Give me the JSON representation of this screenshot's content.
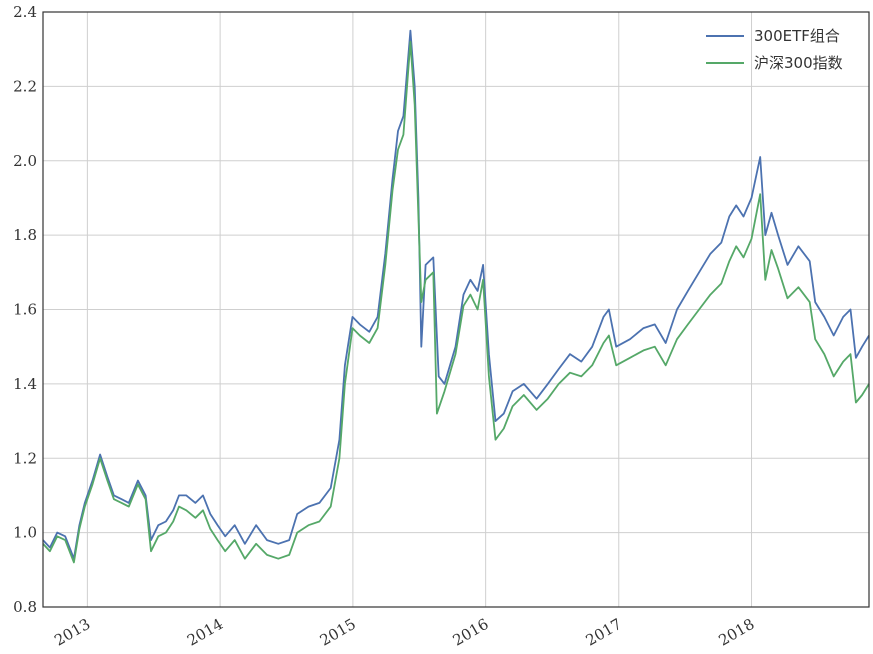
{
  "chart_data": {
    "type": "line",
    "title": "",
    "xlabel": "",
    "ylabel": "",
    "ylim": [
      0.8,
      2.4
    ],
    "xlim": [
      "2012-09-01",
      "2018-11-20"
    ],
    "grid": true,
    "legend_position": "top-right",
    "y_ticks": [
      "0.8",
      "1.0",
      "1.2",
      "1.4",
      "1.6",
      "1.8",
      "2.0",
      "2.2",
      "2.4"
    ],
    "x_ticks": [
      {
        "date": "2013-01-01",
        "label": "2013"
      },
      {
        "date": "2014-01-01",
        "label": "2014"
      },
      {
        "date": "2015-01-01",
        "label": "2015"
      },
      {
        "date": "2016-01-01",
        "label": "2016"
      },
      {
        "date": "2017-01-01",
        "label": "2017"
      },
      {
        "date": "2018-01-01",
        "label": "2018"
      }
    ],
    "series": [
      {
        "name": "300ETF组合",
        "color": "#4c72b0",
        "points": [
          [
            "2012-09-01",
            0.98
          ],
          [
            "2012-09-20",
            0.96
          ],
          [
            "2012-10-10",
            1.0
          ],
          [
            "2012-11-01",
            0.99
          ],
          [
            "2012-11-25",
            0.93
          ],
          [
            "2012-12-10",
            1.02
          ],
          [
            "2012-12-25",
            1.08
          ],
          [
            "2013-01-15",
            1.14
          ],
          [
            "2013-02-05",
            1.21
          ],
          [
            "2013-02-25",
            1.15
          ],
          [
            "2013-03-15",
            1.1
          ],
          [
            "2013-04-05",
            1.09
          ],
          [
            "2013-04-25",
            1.08
          ],
          [
            "2013-05-20",
            1.14
          ],
          [
            "2013-06-10",
            1.1
          ],
          [
            "2013-06-25",
            0.98
          ],
          [
            "2013-07-15",
            1.02
          ],
          [
            "2013-08-05",
            1.03
          ],
          [
            "2013-08-25",
            1.06
          ],
          [
            "2013-09-10",
            1.1
          ],
          [
            "2013-09-30",
            1.1
          ],
          [
            "2013-10-25",
            1.08
          ],
          [
            "2013-11-15",
            1.1
          ],
          [
            "2013-12-05",
            1.05
          ],
          [
            "2013-12-25",
            1.02
          ],
          [
            "2014-01-15",
            0.99
          ],
          [
            "2014-02-10",
            1.02
          ],
          [
            "2014-03-10",
            0.97
          ],
          [
            "2014-04-10",
            1.02
          ],
          [
            "2014-05-10",
            0.98
          ],
          [
            "2014-06-10",
            0.97
          ],
          [
            "2014-07-10",
            0.98
          ],
          [
            "2014-08-01",
            1.05
          ],
          [
            "2014-09-01",
            1.07
          ],
          [
            "2014-10-01",
            1.08
          ],
          [
            "2014-11-01",
            1.12
          ],
          [
            "2014-11-25",
            1.25
          ],
          [
            "2014-12-10",
            1.45
          ],
          [
            "2014-12-31",
            1.58
          ],
          [
            "2015-01-20",
            1.56
          ],
          [
            "2015-02-15",
            1.54
          ],
          [
            "2015-03-10",
            1.58
          ],
          [
            "2015-03-31",
            1.75
          ],
          [
            "2015-04-20",
            1.95
          ],
          [
            "2015-05-05",
            2.08
          ],
          [
            "2015-05-20",
            2.12
          ],
          [
            "2015-06-08",
            2.35
          ],
          [
            "2015-06-20",
            2.2
          ],
          [
            "2015-06-30",
            1.9
          ],
          [
            "2015-07-08",
            1.5
          ],
          [
            "2015-07-20",
            1.72
          ],
          [
            "2015-08-10",
            1.74
          ],
          [
            "2015-08-25",
            1.42
          ],
          [
            "2015-09-10",
            1.4
          ],
          [
            "2015-10-10",
            1.5
          ],
          [
            "2015-11-01",
            1.64
          ],
          [
            "2015-11-20",
            1.68
          ],
          [
            "2015-12-10",
            1.65
          ],
          [
            "2015-12-25",
            1.72
          ],
          [
            "2016-01-10",
            1.48
          ],
          [
            "2016-01-28",
            1.3
          ],
          [
            "2016-02-20",
            1.32
          ],
          [
            "2016-03-15",
            1.38
          ],
          [
            "2016-04-15",
            1.4
          ],
          [
            "2016-05-20",
            1.36
          ],
          [
            "2016-06-20",
            1.4
          ],
          [
            "2016-07-20",
            1.44
          ],
          [
            "2016-08-20",
            1.48
          ],
          [
            "2016-09-20",
            1.46
          ],
          [
            "2016-10-20",
            1.5
          ],
          [
            "2016-11-20",
            1.58
          ],
          [
            "2016-12-05",
            1.6
          ],
          [
            "2016-12-25",
            1.5
          ],
          [
            "2017-02-01",
            1.52
          ],
          [
            "2017-03-10",
            1.55
          ],
          [
            "2017-04-10",
            1.56
          ],
          [
            "2017-05-10",
            1.51
          ],
          [
            "2017-06-10",
            1.6
          ],
          [
            "2017-07-10",
            1.65
          ],
          [
            "2017-08-10",
            1.7
          ],
          [
            "2017-09-10",
            1.75
          ],
          [
            "2017-10-10",
            1.78
          ],
          [
            "2017-11-01",
            1.85
          ],
          [
            "2017-11-20",
            1.88
          ],
          [
            "2017-12-10",
            1.85
          ],
          [
            "2018-01-01",
            1.9
          ],
          [
            "2018-01-25",
            2.01
          ],
          [
            "2018-02-08",
            1.8
          ],
          [
            "2018-02-25",
            1.86
          ],
          [
            "2018-03-15",
            1.8
          ],
          [
            "2018-04-10",
            1.72
          ],
          [
            "2018-05-10",
            1.77
          ],
          [
            "2018-06-10",
            1.73
          ],
          [
            "2018-06-25",
            1.62
          ],
          [
            "2018-07-20",
            1.58
          ],
          [
            "2018-08-15",
            1.53
          ],
          [
            "2018-09-10",
            1.58
          ],
          [
            "2018-09-30",
            1.6
          ],
          [
            "2018-10-15",
            1.47
          ],
          [
            "2018-11-01",
            1.5
          ],
          [
            "2018-11-20",
            1.53
          ]
        ]
      },
      {
        "name": "沪深300指数",
        "color": "#55a868",
        "points": [
          [
            "2012-09-01",
            0.97
          ],
          [
            "2012-09-20",
            0.95
          ],
          [
            "2012-10-10",
            0.99
          ],
          [
            "2012-11-01",
            0.98
          ],
          [
            "2012-11-25",
            0.92
          ],
          [
            "2012-12-10",
            1.01
          ],
          [
            "2012-12-25",
            1.07
          ],
          [
            "2013-01-15",
            1.13
          ],
          [
            "2013-02-05",
            1.2
          ],
          [
            "2013-02-25",
            1.14
          ],
          [
            "2013-03-15",
            1.09
          ],
          [
            "2013-04-05",
            1.08
          ],
          [
            "2013-04-25",
            1.07
          ],
          [
            "2013-05-20",
            1.13
          ],
          [
            "2013-06-10",
            1.09
          ],
          [
            "2013-06-25",
            0.95
          ],
          [
            "2013-07-15",
            0.99
          ],
          [
            "2013-08-05",
            1.0
          ],
          [
            "2013-08-25",
            1.03
          ],
          [
            "2013-09-10",
            1.07
          ],
          [
            "2013-09-30",
            1.06
          ],
          [
            "2013-10-25",
            1.04
          ],
          [
            "2013-11-15",
            1.06
          ],
          [
            "2013-12-05",
            1.01
          ],
          [
            "2013-12-25",
            0.98
          ],
          [
            "2014-01-15",
            0.95
          ],
          [
            "2014-02-10",
            0.98
          ],
          [
            "2014-03-10",
            0.93
          ],
          [
            "2014-04-10",
            0.97
          ],
          [
            "2014-05-10",
            0.94
          ],
          [
            "2014-06-10",
            0.93
          ],
          [
            "2014-07-10",
            0.94
          ],
          [
            "2014-08-01",
            1.0
          ],
          [
            "2014-09-01",
            1.02
          ],
          [
            "2014-10-01",
            1.03
          ],
          [
            "2014-11-01",
            1.07
          ],
          [
            "2014-11-25",
            1.2
          ],
          [
            "2014-12-10",
            1.4
          ],
          [
            "2014-12-31",
            1.55
          ],
          [
            "2015-01-20",
            1.53
          ],
          [
            "2015-02-15",
            1.51
          ],
          [
            "2015-03-10",
            1.55
          ],
          [
            "2015-03-31",
            1.72
          ],
          [
            "2015-04-20",
            1.92
          ],
          [
            "2015-05-05",
            2.03
          ],
          [
            "2015-05-20",
            2.07
          ],
          [
            "2015-06-08",
            2.32
          ],
          [
            "2015-06-20",
            2.15
          ],
          [
            "2015-06-30",
            1.85
          ],
          [
            "2015-07-08",
            1.62
          ],
          [
            "2015-07-20",
            1.68
          ],
          [
            "2015-08-10",
            1.7
          ],
          [
            "2015-08-20",
            1.32
          ],
          [
            "2015-09-10",
            1.38
          ],
          [
            "2015-10-10",
            1.48
          ],
          [
            "2015-11-01",
            1.61
          ],
          [
            "2015-11-20",
            1.64
          ],
          [
            "2015-12-10",
            1.6
          ],
          [
            "2015-12-25",
            1.68
          ],
          [
            "2016-01-10",
            1.42
          ],
          [
            "2016-01-28",
            1.25
          ],
          [
            "2016-02-20",
            1.28
          ],
          [
            "2016-03-15",
            1.34
          ],
          [
            "2016-04-15",
            1.37
          ],
          [
            "2016-05-20",
            1.33
          ],
          [
            "2016-06-20",
            1.36
          ],
          [
            "2016-07-20",
            1.4
          ],
          [
            "2016-08-20",
            1.43
          ],
          [
            "2016-09-20",
            1.42
          ],
          [
            "2016-10-20",
            1.45
          ],
          [
            "2016-11-20",
            1.51
          ],
          [
            "2016-12-05",
            1.53
          ],
          [
            "2016-12-25",
            1.45
          ],
          [
            "2017-02-01",
            1.47
          ],
          [
            "2017-03-10",
            1.49
          ],
          [
            "2017-04-10",
            1.5
          ],
          [
            "2017-05-10",
            1.45
          ],
          [
            "2017-06-10",
            1.52
          ],
          [
            "2017-07-10",
            1.56
          ],
          [
            "2017-08-10",
            1.6
          ],
          [
            "2017-09-10",
            1.64
          ],
          [
            "2017-10-10",
            1.67
          ],
          [
            "2017-11-01",
            1.73
          ],
          [
            "2017-11-20",
            1.77
          ],
          [
            "2017-12-10",
            1.74
          ],
          [
            "2018-01-01",
            1.79
          ],
          [
            "2018-01-25",
            1.91
          ],
          [
            "2018-02-08",
            1.68
          ],
          [
            "2018-02-25",
            1.76
          ],
          [
            "2018-03-15",
            1.71
          ],
          [
            "2018-04-10",
            1.63
          ],
          [
            "2018-05-10",
            1.66
          ],
          [
            "2018-06-10",
            1.62
          ],
          [
            "2018-06-25",
            1.52
          ],
          [
            "2018-07-20",
            1.48
          ],
          [
            "2018-08-15",
            1.42
          ],
          [
            "2018-09-10",
            1.46
          ],
          [
            "2018-09-30",
            1.48
          ],
          [
            "2018-10-15",
            1.35
          ],
          [
            "2018-11-01",
            1.37
          ],
          [
            "2018-11-20",
            1.4
          ]
        ]
      }
    ]
  }
}
